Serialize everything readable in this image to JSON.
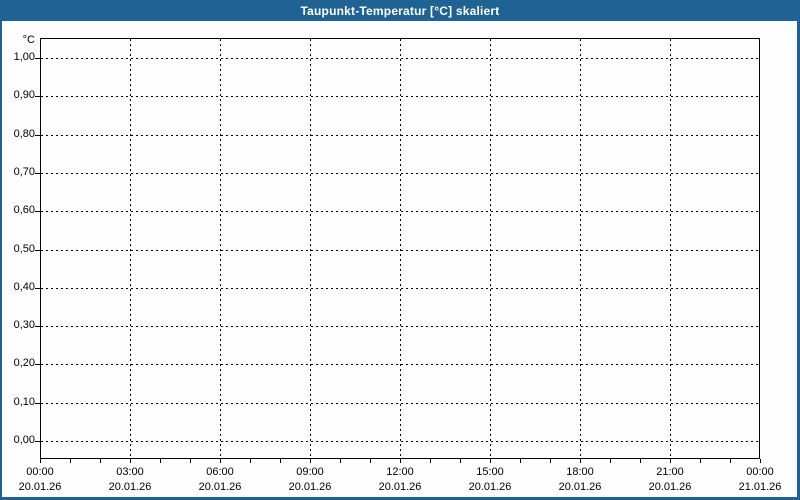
{
  "window": {
    "title": "Taupunkt-Temperatur [°C] skaliert"
  },
  "colors": {
    "titlebar": "#1e6394",
    "titlebar_text": "#ffffff",
    "window_border": "#1e6394",
    "background": "#fdfefd",
    "grid": "#000000",
    "label_text": "#000000"
  },
  "chart_data": {
    "type": "line",
    "title": "Taupunkt-Temperatur [°C] skaliert",
    "xlabel": "",
    "ylabel": "°C",
    "ylim": [
      0.0,
      1.0
    ],
    "y_tick_step": 0.1,
    "y_tick_labels": [
      "1,00",
      "0,90",
      "0,80",
      "0,70",
      "0,60",
      "0,50",
      "0,40",
      "0,30",
      "0,20",
      "0,10",
      "0,00"
    ],
    "x_range": [
      "20.01.26 00:00",
      "21.01.26 00:00"
    ],
    "x_major_tick_hours": 3,
    "x_minor_tick_hours": 1,
    "x_ticks": [
      {
        "time": "00:00",
        "date": "20.01.26"
      },
      {
        "time": "03:00",
        "date": "20.01.26"
      },
      {
        "time": "06:00",
        "date": "20.01.26"
      },
      {
        "time": "09:00",
        "date": "20.01.26"
      },
      {
        "time": "12:00",
        "date": "20.01.26"
      },
      {
        "time": "15:00",
        "date": "20.01.26"
      },
      {
        "time": "18:00",
        "date": "20.01.26"
      },
      {
        "time": "21:00",
        "date": "20.01.26"
      },
      {
        "time": "00:00",
        "date": "21.01.26"
      }
    ],
    "grid": "dashed",
    "legend": "none",
    "series": []
  }
}
